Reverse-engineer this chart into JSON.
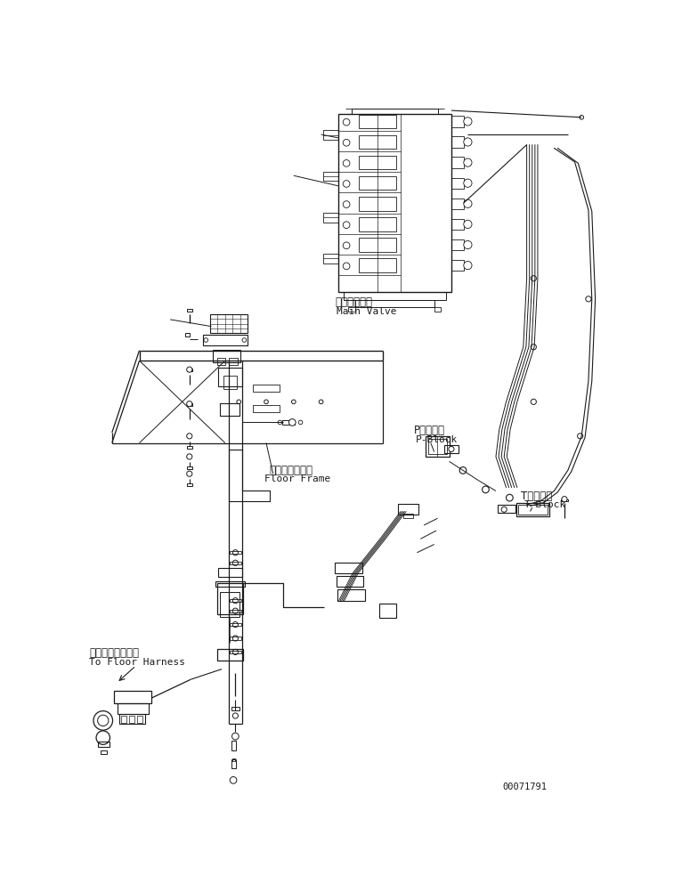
{
  "bg_color": "#ffffff",
  "line_color": "#1a1a1a",
  "part_number": "00071791",
  "labels": {
    "main_valve_jp": "メインバルブ",
    "main_valve_en": "Main Valve",
    "floor_frame_jp": "フロアフレーム",
    "floor_frame_en": "Floor Frame",
    "p_block_jp": "Pブロック",
    "p_block_en": "P-Block",
    "t_block_jp": "Tブロック",
    "t_block_en": "T-Block",
    "harness_jp": "フロアハーネスへ",
    "harness_en": "To Floor Harness"
  },
  "font_size": 7.5
}
